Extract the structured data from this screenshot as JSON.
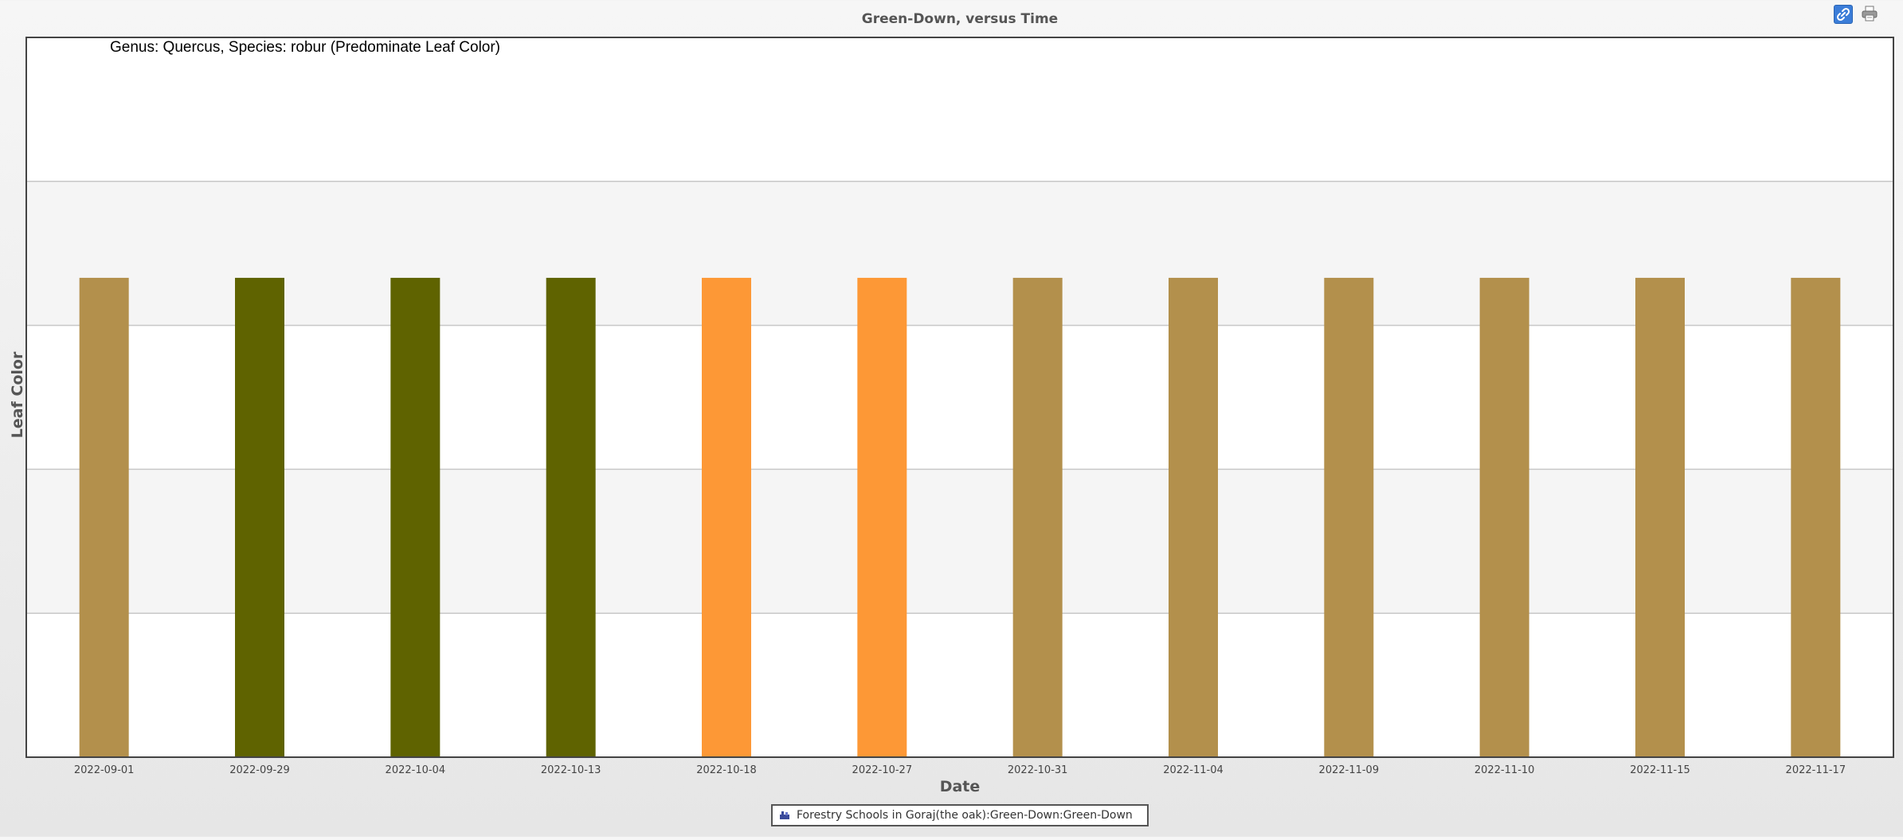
{
  "chart_data": {
    "type": "bar",
    "title": "Green-Down, versus Time",
    "annotation": "Genus: Quercus, Species: robur (Predominate Leaf Color)",
    "xlabel": "Date",
    "ylabel": "Leaf Color",
    "categories": [
      "2022-09-01",
      "2022-09-29",
      "2022-10-04",
      "2022-10-13",
      "2022-10-18",
      "2022-10-27",
      "2022-10-31",
      "2022-11-04",
      "2022-11-09",
      "2022-11-10",
      "2022-11-15",
      "2022-11-17"
    ],
    "series": [
      {
        "name": "Forestry Schools in Goraj(the oak):Green-Down:Green-Down",
        "values": [
          3.33,
          3.33,
          3.33,
          3.33,
          3.33,
          3.33,
          3.33,
          3.33,
          3.33,
          3.33,
          3.33,
          3.33
        ],
        "colors": [
          "#b3904c",
          "#5f6300",
          "#5f6300",
          "#5f6300",
          "#fd9836",
          "#fd9836",
          "#b3904c",
          "#b3904c",
          "#b3904c",
          "#b3904c",
          "#b3904c",
          "#b3904c"
        ]
      }
    ],
    "ylim": [
      0,
      5
    ],
    "grid": true,
    "legend_position": "bottom-center"
  },
  "toolbar": {
    "link_icon": "link-icon",
    "print_icon": "printer-icon"
  },
  "legend": {
    "icon": "tree-icon",
    "label": "Forestry Schools in Goraj(the oak):Green-Down:Green-Down"
  }
}
